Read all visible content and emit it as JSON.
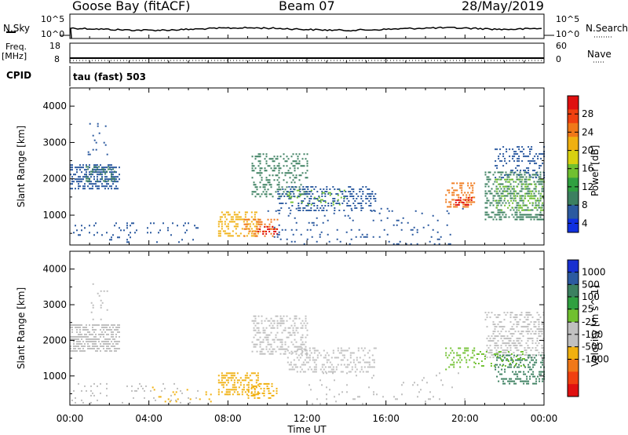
{
  "header": {
    "station": "Goose Bay (fitACF)",
    "beam": "Beam 07",
    "date": "28/May/2019"
  },
  "labels": {
    "nsky": "N.Sky",
    "nsearch": "N.Search",
    "freq": "Freq.",
    "mhz": "[MHz]",
    "nave": "Nave",
    "cpid": "CPID",
    "cpid_value": "tau (fast) 503"
  },
  "top_axes": {
    "noise_left_ticks": [
      "10^5",
      "10^0"
    ],
    "noise_right_ticks": [
      "10^5",
      "10^0"
    ],
    "freq_left_ticks": [
      "18",
      "8"
    ],
    "nave_right_ticks": [
      "60",
      "0"
    ]
  },
  "colorbars": {
    "power": {
      "label": "Power [dB]",
      "ticks": [
        "28",
        "24",
        "20",
        "16",
        "12",
        "8",
        "4"
      ],
      "colors": [
        "#e01010",
        "#f04010",
        "#f07818",
        "#f0b010",
        "#d8d010",
        "#70c030",
        "#30a040",
        "#3c8060",
        "#2c5aa0",
        "#1030e0"
      ]
    },
    "velocity": {
      "label": "Velocity [m s^-1]",
      "ticks": [
        "1000",
        "500",
        "100",
        "25",
        "-25",
        "-100",
        "-500",
        "-1000"
      ],
      "colors": [
        "#1830d0",
        "#2c5aa0",
        "#3c8060",
        "#30a040",
        "#70c030",
        "#c0c0c0",
        "#c0c0c0",
        "#f0b010",
        "#f07818",
        "#f04010",
        "#e01010"
      ]
    }
  },
  "chart_data": [
    {
      "type": "heatmap",
      "panel": "power",
      "ylabel": "Slant Range [km]",
      "xlabel": "Time UT",
      "x_ticks": [
        "00:00",
        "04:00",
        "08:00",
        "12:00",
        "16:00",
        "20:00",
        "00:00"
      ],
      "y_ticks": [
        1000,
        2000,
        3000,
        4000
      ],
      "xlim": [
        0,
        24
      ],
      "ylim": [
        180,
        4500
      ],
      "regions": [
        {
          "t": [
            0.0,
            2.5
          ],
          "r": [
            1750,
            2400
          ],
          "color": "#2c5aa0",
          "density": 0.55
        },
        {
          "t": [
            0.8,
            2.3
          ],
          "r": [
            1900,
            2350
          ],
          "color": "#3c8060",
          "density": 0.35
        },
        {
          "t": [
            0.9,
            2.0
          ],
          "r": [
            2600,
            3600
          ],
          "color": "#2c5aa0",
          "density": 0.04
        },
        {
          "t": [
            0.0,
            6.5
          ],
          "r": [
            250,
            800
          ],
          "color": "#2c5aa0",
          "density": 0.08
        },
        {
          "t": [
            7.5,
            9.5
          ],
          "r": [
            400,
            1100
          ],
          "color": "#f0b010",
          "density": 0.45
        },
        {
          "t": [
            8.8,
            10.5
          ],
          "r": [
            400,
            900
          ],
          "color": "#f07818",
          "density": 0.35
        },
        {
          "t": [
            9.5,
            10.5
          ],
          "r": [
            450,
            700
          ],
          "color": "#e01010",
          "density": 0.3
        },
        {
          "t": [
            9.2,
            12.0
          ],
          "r": [
            1500,
            2700
          ],
          "color": "#3c8060",
          "density": 0.35
        },
        {
          "t": [
            10.5,
            15.5
          ],
          "r": [
            1100,
            1800
          ],
          "color": "#2c5aa0",
          "density": 0.3
        },
        {
          "t": [
            11.0,
            14.0
          ],
          "r": [
            1300,
            1700
          ],
          "color": "#70c030",
          "density": 0.15
        },
        {
          "t": [
            10.0,
            20.0
          ],
          "r": [
            180,
            1200
          ],
          "color": "#2c5aa0",
          "density": 0.05
        },
        {
          "t": [
            19.0,
            20.5
          ],
          "r": [
            1200,
            1900
          ],
          "color": "#f07818",
          "density": 0.35
        },
        {
          "t": [
            19.5,
            20.3
          ],
          "r": [
            1250,
            1500
          ],
          "color": "#e01010",
          "density": 0.4
        },
        {
          "t": [
            21.0,
            24.0
          ],
          "r": [
            900,
            2200
          ],
          "color": "#3c8060",
          "density": 0.4
        },
        {
          "t": [
            21.5,
            24.0
          ],
          "r": [
            1100,
            2000
          ],
          "color": "#70c030",
          "density": 0.25
        },
        {
          "t": [
            21.5,
            24.0
          ],
          "r": [
            2000,
            2900
          ],
          "color": "#2c5aa0",
          "density": 0.3
        }
      ]
    },
    {
      "type": "heatmap",
      "panel": "velocity",
      "ylabel": "Slant Range [km]",
      "xlabel": "Time UT",
      "x_ticks": [
        "00:00",
        "04:00",
        "08:00",
        "12:00",
        "16:00",
        "20:00",
        "00:00"
      ],
      "y_ticks": [
        1000,
        2000,
        3000,
        4000
      ],
      "xlim": [
        0,
        24
      ],
      "ylim": [
        180,
        4500
      ],
      "regions": [
        {
          "t": [
            0.0,
            2.5
          ],
          "r": [
            1700,
            2450
          ],
          "color": "#c0c0c0",
          "density": 0.6
        },
        {
          "t": [
            0.9,
            2.0
          ],
          "r": [
            2600,
            3600
          ],
          "color": "#c0c0c0",
          "density": 0.04
        },
        {
          "t": [
            0.0,
            6.5
          ],
          "r": [
            250,
            800
          ],
          "color": "#c0c0c0",
          "density": 0.06
        },
        {
          "t": [
            7.5,
            9.5
          ],
          "r": [
            450,
            1100
          ],
          "color": "#f0b010",
          "density": 0.5
        },
        {
          "t": [
            9.0,
            10.5
          ],
          "r": [
            400,
            800
          ],
          "color": "#f0b010",
          "density": 0.35
        },
        {
          "t": [
            4.0,
            8.0
          ],
          "r": [
            250,
            700
          ],
          "color": "#f0b010",
          "density": 0.08
        },
        {
          "t": [
            9.2,
            12.0
          ],
          "r": [
            1600,
            2700
          ],
          "color": "#c0c0c0",
          "density": 0.35
        },
        {
          "t": [
            11.0,
            15.5
          ],
          "r": [
            1100,
            1800
          ],
          "color": "#c0c0c0",
          "density": 0.3
        },
        {
          "t": [
            12.0,
            20.0
          ],
          "r": [
            180,
            1100
          ],
          "color": "#c0c0c0",
          "density": 0.04
        },
        {
          "t": [
            19.0,
            20.5
          ],
          "r": [
            1200,
            1800
          ],
          "color": "#70c030",
          "density": 0.3
        },
        {
          "t": [
            21.0,
            24.0
          ],
          "r": [
            1500,
            2800
          ],
          "color": "#c0c0c0",
          "density": 0.4
        },
        {
          "t": [
            21.5,
            24.0
          ],
          "r": [
            800,
            1600
          ],
          "color": "#3c8060",
          "density": 0.35
        },
        {
          "t": [
            20.5,
            23.0
          ],
          "r": [
            1300,
            1700
          ],
          "color": "#70c030",
          "density": 0.2
        }
      ]
    }
  ]
}
